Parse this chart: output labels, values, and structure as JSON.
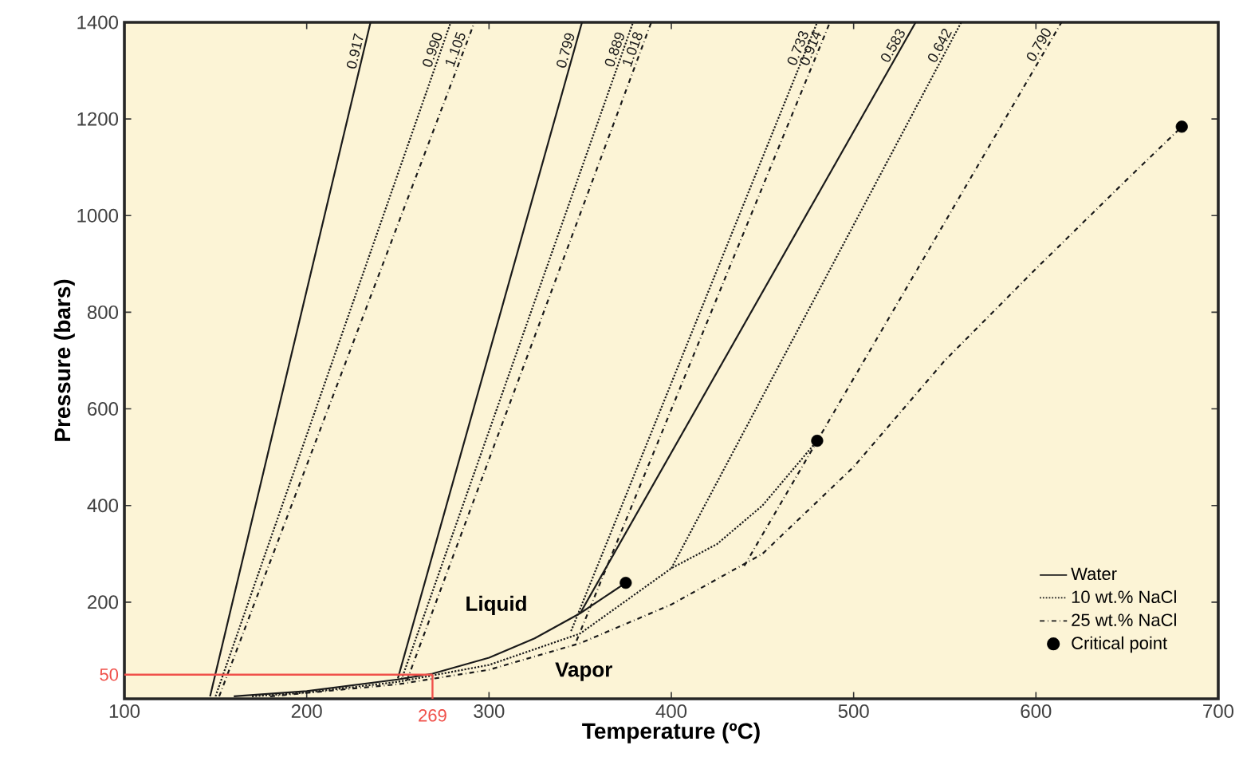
{
  "chart_data": {
    "type": "line",
    "xlabel": "Temperature (ºC)",
    "ylabel": "Pressure (bars)",
    "xlim": [
      100,
      700
    ],
    "ylim": [
      0,
      1400
    ],
    "xticks": [
      100,
      200,
      300,
      400,
      500,
      600,
      700
    ],
    "yticks": [
      200,
      400,
      600,
      800,
      1000,
      1200,
      1400
    ],
    "grid": false,
    "legend": "bottom right",
    "series": [
      {
        "name": "Water",
        "color": "#1a1a1a",
        "line_style": "solid",
        "x": [
          160,
          200,
          250,
          269,
          300,
          325,
          350,
          375
        ],
        "values": [
          5,
          16,
          40,
          52,
          85,
          125,
          177,
          240
        ]
      },
      {
        "name": "10 wt.% NaCl",
        "color": "#1a1a1a",
        "line_style": "dotted",
        "x": [
          170,
          200,
          250,
          300,
          350,
          400,
          425,
          450,
          480
        ],
        "values": [
          5,
          13,
          35,
          70,
          135,
          270,
          320,
          400,
          534
        ]
      },
      {
        "name": "25 wt.% NaCl",
        "color": "#1a1a1a",
        "line_style": "dashdot",
        "x": [
          180,
          250,
          300,
          350,
          400,
          450,
          500,
          550,
          600,
          650,
          680
        ],
        "values": [
          5,
          30,
          60,
          115,
          195,
          300,
          480,
          700,
          890,
          1075,
          1184
        ]
      },
      {
        "name": "0.917",
        "color": "#1a1a1a",
        "line_style": "solid",
        "x": [
          147,
          235
        ],
        "values": [
          5,
          1400
        ]
      },
      {
        "name": "0.990",
        "color": "#1a1a1a",
        "line_style": "dotted",
        "x": [
          150,
          279
        ],
        "values": [
          5,
          1400
        ]
      },
      {
        "name": "1.105",
        "color": "#1a1a1a",
        "line_style": "dashdot",
        "x": [
          152,
          292
        ],
        "values": [
          5,
          1400
        ]
      },
      {
        "name": "0.799",
        "color": "#1a1a1a",
        "line_style": "solid",
        "x": [
          250,
          351
        ],
        "values": [
          42,
          1400
        ]
      },
      {
        "name": "0.889",
        "color": "#1a1a1a",
        "line_style": "dotted",
        "x": [
          252,
          379
        ],
        "values": [
          40,
          1400
        ]
      },
      {
        "name": "1.018",
        "color": "#1a1a1a",
        "line_style": "dashdot",
        "x": [
          255,
          389
        ],
        "values": [
          38,
          1400
        ]
      },
      {
        "name": "0.733",
        "color": "#1a1a1a",
        "line_style": "dotted",
        "x": [
          345,
          480
        ],
        "values": [
          140,
          1400
        ]
      },
      {
        "name": "0.914",
        "color": "#1a1a1a",
        "line_style": "dashdot",
        "x": [
          348,
          487
        ],
        "values": [
          120,
          1400
        ]
      },
      {
        "name": "0.583",
        "color": "#1a1a1a",
        "line_style": "solid",
        "x": [
          350,
          534
        ],
        "values": [
          177,
          1400
        ]
      },
      {
        "name": "0.642",
        "color": "#1a1a1a",
        "line_style": "dotted",
        "x": [
          400,
          559
        ],
        "values": [
          270,
          1400
        ]
      },
      {
        "name": "0.790",
        "color": "#1a1a1a",
        "line_style": "dashdot",
        "x": [
          440,
          614
        ],
        "values": [
          275,
          1400
        ]
      },
      {
        "name": "Critical point",
        "type": "scatter",
        "marker": "circle",
        "color": "#000000",
        "x": [
          375,
          480,
          680
        ],
        "values": [
          240,
          534,
          1184
        ]
      }
    ],
    "ref_lines": [
      {
        "axis": "y",
        "value": 50,
        "label": "50",
        "color": "#f0504a"
      },
      {
        "axis": "x",
        "value": 269,
        "label": "269",
        "color": "#f0504a"
      }
    ],
    "annotations": [
      "Liquid",
      "Vapor"
    ]
  }
}
